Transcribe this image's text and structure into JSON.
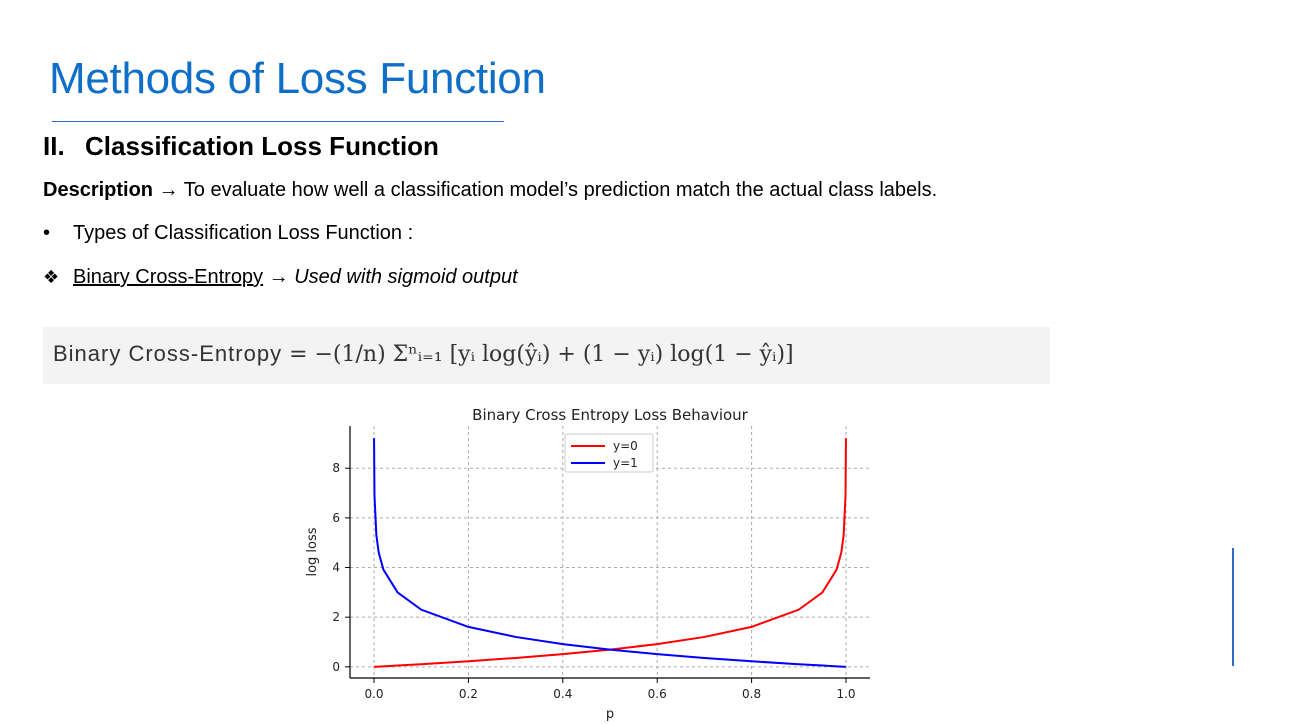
{
  "slide": {
    "title": "Methods of Loss Function",
    "section_number": "II.",
    "section_title": "Classification Loss Function",
    "description_label": "Description",
    "description_text": " → To evaluate how well a classification model’s prediction match the actual class labels.",
    "bullet_text": "Types of Classification Loss Function :",
    "subitem_name": "Binary Cross-Entropy",
    "subitem_arrow": " → ",
    "subitem_note": "Used with sigmoid output",
    "formula_label": "Binary Cross-Entropy",
    "formula_expression": " = −(1/n) Σⁿᵢ₌₁ [yᵢ log(ŷᵢ) + (1 − yᵢ) log(1 − ŷᵢ)]"
  },
  "chart_data": {
    "type": "line",
    "title": "Binary Cross Entropy Loss Behaviour",
    "xlabel": "p",
    "ylabel": "log loss",
    "xlim": [
      0.0,
      1.0
    ],
    "ylim": [
      -0.45,
      9.7
    ],
    "xticks": [
      "0.0",
      "0.2",
      "0.4",
      "0.6",
      "0.8",
      "1.0"
    ],
    "yticks": [
      "0",
      "2",
      "4",
      "6",
      "8"
    ],
    "grid": true,
    "legend_position": "top-center",
    "x": [
      0.0001,
      0.001,
      0.005,
      0.01,
      0.02,
      0.05,
      0.1,
      0.2,
      0.3,
      0.4,
      0.5,
      0.6,
      0.7,
      0.8,
      0.9,
      0.95,
      0.98,
      0.99,
      0.995,
      0.999,
      0.9999
    ],
    "series": [
      {
        "name": "y=0",
        "color": "#ff0000",
        "values": [
          0.0001,
          0.001,
          0.005,
          0.01,
          0.02,
          0.051,
          0.105,
          0.223,
          0.357,
          0.511,
          0.693,
          0.916,
          1.204,
          1.609,
          2.303,
          2.996,
          3.912,
          4.605,
          5.298,
          6.908,
          9.21
        ]
      },
      {
        "name": "y=1",
        "color": "#0000ff",
        "values": [
          9.21,
          6.908,
          5.298,
          4.605,
          3.912,
          2.996,
          2.303,
          1.609,
          1.204,
          0.916,
          0.693,
          0.511,
          0.357,
          0.223,
          0.105,
          0.051,
          0.02,
          0.01,
          0.005,
          0.001,
          0.0001
        ]
      }
    ]
  }
}
